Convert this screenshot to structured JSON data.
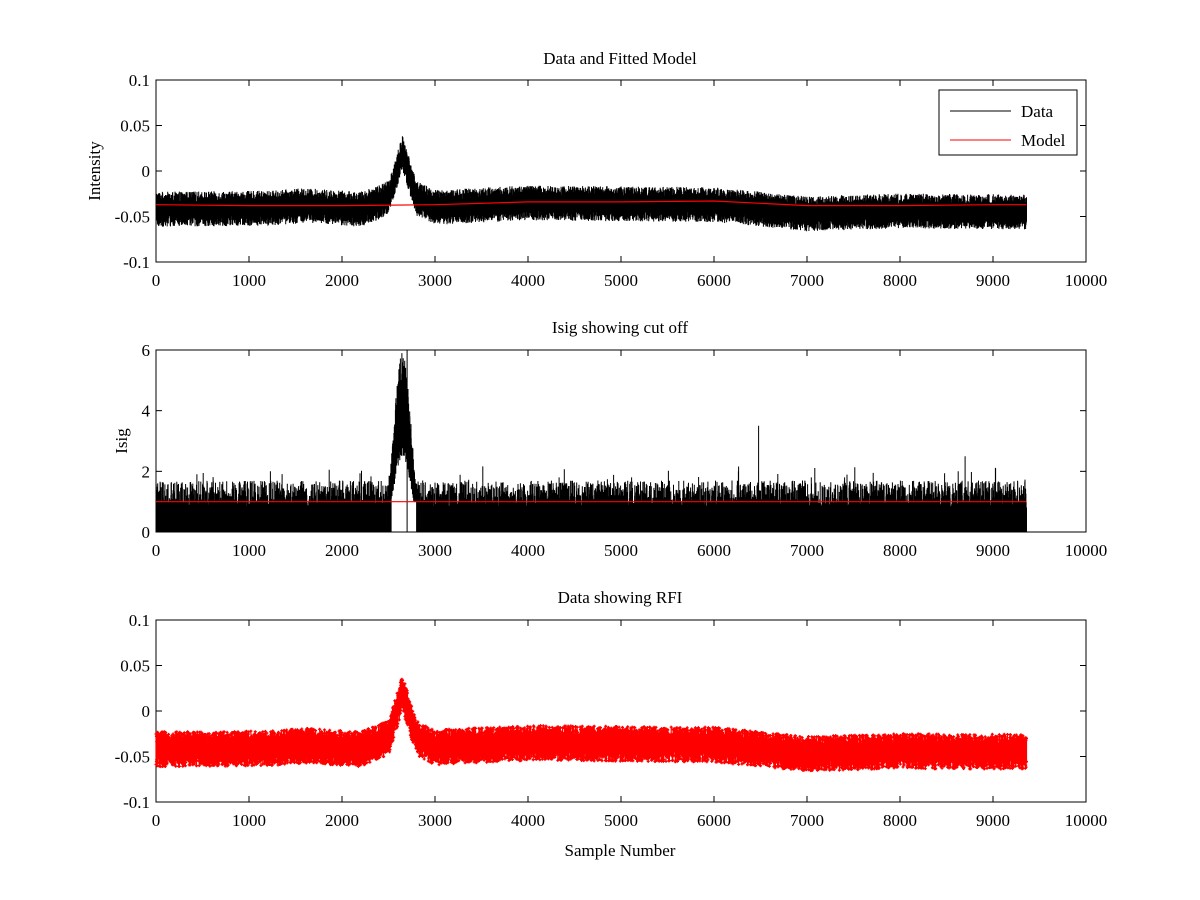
{
  "chart_data": [
    {
      "type": "line",
      "title": "Data and Fitted Model",
      "xlabel": "",
      "ylabel": "Intensity",
      "xlim": [
        0,
        10000
      ],
      "ylim": [
        -0.1,
        0.1
      ],
      "xticks": [
        "0",
        "1000",
        "2000",
        "3000",
        "4000",
        "5000",
        "6000",
        "7000",
        "8000",
        "9000",
        "10000"
      ],
      "yticks": [
        "-0.1",
        "-0.05",
        "0",
        "0.05",
        "0.1"
      ],
      "grid": false,
      "legend": {
        "placement": "top-right",
        "entries": [
          "Data",
          "Model"
        ]
      },
      "series": [
        {
          "name": "Data",
          "color": "#000000",
          "style": "noisy-line",
          "n_samples": 9360,
          "x_range": [
            0,
            9360
          ],
          "baseline": [
            [
              0,
              -0.042
            ],
            [
              1200,
              -0.041
            ],
            [
              1600,
              -0.038
            ],
            [
              2200,
              -0.042
            ],
            [
              2500,
              -0.03
            ],
            [
              2650,
              0.02
            ],
            [
              2800,
              -0.03
            ],
            [
              3000,
              -0.04
            ],
            [
              4000,
              -0.035
            ],
            [
              5000,
              -0.036
            ],
            [
              6000,
              -0.037
            ],
            [
              6500,
              -0.042
            ],
            [
              7000,
              -0.047
            ],
            [
              8000,
              -0.044
            ],
            [
              9360,
              -0.045
            ]
          ],
          "noise_amplitude": 0.012
        },
        {
          "name": "Model",
          "color": "#ff0000",
          "points": [
            [
              0,
              -0.037
            ],
            [
              1000,
              -0.038
            ],
            [
              2000,
              -0.038
            ],
            [
              3000,
              -0.037
            ],
            [
              4000,
              -0.034
            ],
            [
              5000,
              -0.034
            ],
            [
              6000,
              -0.033
            ],
            [
              7000,
              -0.038
            ],
            [
              8000,
              -0.038
            ],
            [
              9000,
              -0.037
            ],
            [
              9360,
              -0.037
            ]
          ]
        }
      ]
    },
    {
      "type": "line",
      "title": "Isig showing cut off",
      "xlabel": "",
      "ylabel": "Isig",
      "xlim": [
        0,
        10000
      ],
      "ylim": [
        0,
        6
      ],
      "xticks": [
        "0",
        "1000",
        "2000",
        "3000",
        "4000",
        "5000",
        "6000",
        "7000",
        "8000",
        "9000",
        "10000"
      ],
      "yticks": [
        "0",
        "2",
        "4",
        "6"
      ],
      "grid": false,
      "series": [
        {
          "color": "#000000",
          "style": "noisy-bars",
          "n_samples": 9360,
          "x_range": [
            0,
            9360
          ],
          "gap": [
            2530,
            2800
          ],
          "bump": {
            "center": 2650,
            "peak": 6.0,
            "width": 90
          },
          "typical_max": 2.0,
          "spikes": [
            [
              6480,
              3.5
            ],
            [
              2700,
              6.0
            ],
            [
              8700,
              2.5
            ]
          ]
        },
        {
          "color": "#ff0000",
          "points": [
            [
              0,
              1.0
            ],
            [
              9360,
              1.0
            ]
          ]
        }
      ]
    },
    {
      "type": "scatter",
      "title": "Data showing RFI",
      "xlabel": "Sample Number",
      "ylabel": "",
      "xlim": [
        0,
        10000
      ],
      "ylim": [
        -0.1,
        0.1
      ],
      "xticks": [
        "0",
        "1000",
        "2000",
        "3000",
        "4000",
        "5000",
        "6000",
        "7000",
        "8000",
        "9000",
        "10000"
      ],
      "yticks": [
        "-0.1",
        "-0.05",
        "0",
        "0.05",
        "0.1"
      ],
      "grid": false,
      "series": [
        {
          "color": "#ff0000",
          "style": "noisy-markers",
          "n_samples": 9360,
          "x_range": [
            0,
            9360
          ],
          "baseline": [
            [
              0,
              -0.042
            ],
            [
              1200,
              -0.041
            ],
            [
              1600,
              -0.038
            ],
            [
              2200,
              -0.042
            ],
            [
              2500,
              -0.03
            ],
            [
              2650,
              0.02
            ],
            [
              2800,
              -0.03
            ],
            [
              3000,
              -0.04
            ],
            [
              4000,
              -0.035
            ],
            [
              5000,
              -0.036
            ],
            [
              6000,
              -0.037
            ],
            [
              6500,
              -0.042
            ],
            [
              7000,
              -0.047
            ],
            [
              8000,
              -0.044
            ],
            [
              9360,
              -0.045
            ]
          ],
          "noise_amplitude": 0.012
        }
      ]
    }
  ]
}
